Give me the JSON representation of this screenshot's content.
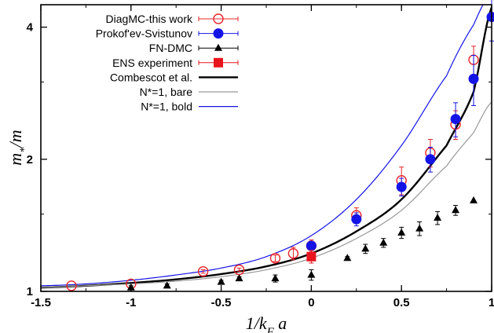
{
  "chart_data": {
    "type": "scatter",
    "title": "",
    "xlabel": "1/k_F a",
    "ylabel": "m_*/m",
    "xlim": [
      -1.5,
      1.0
    ],
    "ylim": [
      1.0,
      4.5
    ],
    "y_scale": "log",
    "x_ticks": [
      -1.5,
      -1,
      -0.5,
      0,
      0.5,
      1
    ],
    "x_tick_labels": [
      "-1.5",
      "-1",
      "-0.5",
      "0",
      "0.5",
      "1"
    ],
    "y_ticks": [
      1,
      2,
      4
    ],
    "y_tick_labels": [
      "1",
      "2",
      "4"
    ],
    "legend_position": "top-left",
    "series": [
      {
        "name": "DiagMC-this work",
        "marker": "open-circle",
        "color": "#e8242a",
        "points": [
          {
            "x": -1.33,
            "y": 1.03,
            "err": 0.0
          },
          {
            "x": -1.0,
            "y": 1.04,
            "err": 0.0
          },
          {
            "x": -0.6,
            "y": 1.11,
            "err": 0.01
          },
          {
            "x": -0.4,
            "y": 1.12,
            "err": 0.01
          },
          {
            "x": -0.2,
            "y": 1.19,
            "err": 0.02
          },
          {
            "x": -0.1,
            "y": 1.22,
            "err": 0.04
          },
          {
            "x": 0.0,
            "y": 1.27,
            "err": 0.04
          },
          {
            "x": 0.25,
            "y": 1.49,
            "err": 0.06
          },
          {
            "x": 0.5,
            "y": 1.79,
            "err": 0.13
          },
          {
            "x": 0.66,
            "y": 2.07,
            "err": 0.15
          },
          {
            "x": 0.8,
            "y": 2.4,
            "err": 0.18
          },
          {
            "x": 0.9,
            "y": 3.37,
            "err": 0.25
          }
        ]
      },
      {
        "name": "Prokof'ev-Svistunov",
        "marker": "filled-circle",
        "color": "#1414e6",
        "points": [
          {
            "x": 0.0,
            "y": 1.27,
            "err": 0.03
          },
          {
            "x": 0.25,
            "y": 1.46,
            "err": 0.05
          },
          {
            "x": 0.5,
            "y": 1.73,
            "err": 0.08
          },
          {
            "x": 0.66,
            "y": 2.0,
            "err": 0.13
          },
          {
            "x": 0.8,
            "y": 2.47,
            "err": 0.22
          },
          {
            "x": 0.9,
            "y": 3.05,
            "err": 0.4
          },
          {
            "x": 1.0,
            "y": 4.22,
            "err": 0.5
          }
        ]
      },
      {
        "name": "FN-DMC",
        "marker": "filled-triangle",
        "color": "#000000",
        "points": [
          {
            "x": -1.0,
            "y": 1.02,
            "err": 0.01
          },
          {
            "x": -0.8,
            "y": 1.03,
            "err": 0.01
          },
          {
            "x": -0.5,
            "y": 1.05,
            "err": 0.01
          },
          {
            "x": -0.4,
            "y": 1.07,
            "err": 0.01
          },
          {
            "x": -0.2,
            "y": 1.07,
            "err": 0.02
          },
          {
            "x": 0.0,
            "y": 1.09,
            "err": 0.03
          },
          {
            "x": 0.2,
            "y": 1.19,
            "err": 0.01
          },
          {
            "x": 0.3,
            "y": 1.25,
            "err": 0.03
          },
          {
            "x": 0.4,
            "y": 1.29,
            "err": 0.03
          },
          {
            "x": 0.5,
            "y": 1.36,
            "err": 0.04
          },
          {
            "x": 0.6,
            "y": 1.39,
            "err": 0.05
          },
          {
            "x": 0.7,
            "y": 1.47,
            "err": 0.05
          },
          {
            "x": 0.8,
            "y": 1.53,
            "err": 0.04
          },
          {
            "x": 0.9,
            "y": 1.61,
            "err": 0.0
          }
        ]
      },
      {
        "name": "ENS experiment",
        "marker": "filled-square",
        "color": "#e8141e",
        "points": [
          {
            "x": 0.0,
            "y": 1.2,
            "err": 0.04
          }
        ]
      }
    ],
    "curves": [
      {
        "name": "Combescot et al.",
        "color": "#000000",
        "width": 2.4,
        "points": [
          [
            -1.5,
            1.02
          ],
          [
            -1.25,
            1.03
          ],
          [
            -1.0,
            1.045
          ],
          [
            -0.75,
            1.065
          ],
          [
            -0.5,
            1.095
          ],
          [
            -0.25,
            1.14
          ],
          [
            0.0,
            1.22
          ],
          [
            0.25,
            1.37
          ],
          [
            0.5,
            1.62
          ],
          [
            0.75,
            2.15
          ],
          [
            0.9,
            2.85
          ],
          [
            1.0,
            4.44
          ]
        ]
      },
      {
        "name": "N*=1, bare",
        "color": "#999999",
        "width": 1.2,
        "points": [
          [
            -1.5,
            1.02
          ],
          [
            -1.25,
            1.03
          ],
          [
            -1.0,
            1.04
          ],
          [
            -0.75,
            1.055
          ],
          [
            -0.5,
            1.08
          ],
          [
            -0.25,
            1.12
          ],
          [
            0.0,
            1.19
          ],
          [
            0.25,
            1.32
          ],
          [
            0.5,
            1.53
          ],
          [
            0.75,
            1.93
          ],
          [
            0.9,
            2.3
          ],
          [
            1.0,
            2.7
          ]
        ]
      },
      {
        "name": "N*=1, bold",
        "color": "#1414e6",
        "width": 1.2,
        "points": [
          [
            -1.5,
            1.03
          ],
          [
            -1.25,
            1.04
          ],
          [
            -1.0,
            1.06
          ],
          [
            -0.75,
            1.09
          ],
          [
            -0.5,
            1.13
          ],
          [
            -0.25,
            1.2
          ],
          [
            0.0,
            1.34
          ],
          [
            0.25,
            1.62
          ],
          [
            0.5,
            2.15
          ],
          [
            0.75,
            3.1
          ],
          [
            0.9,
            4.05
          ],
          [
            1.0,
            4.8
          ]
        ]
      }
    ]
  }
}
